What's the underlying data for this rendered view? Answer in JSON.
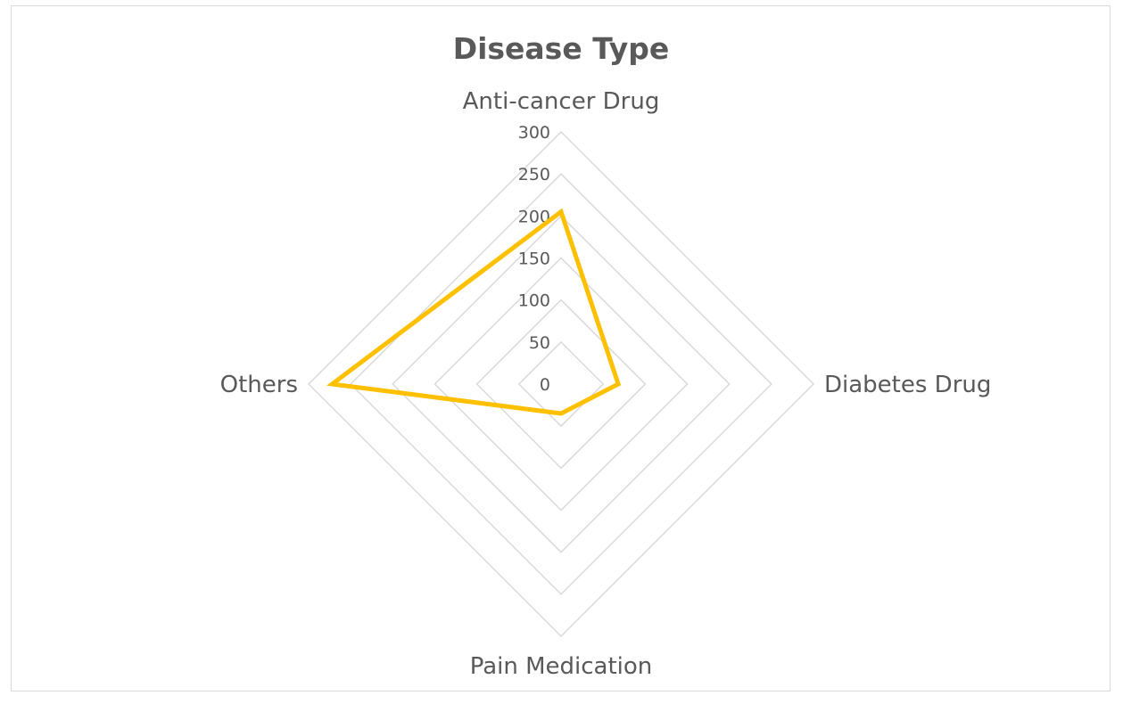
{
  "chart_data": {
    "type": "radar",
    "title": "Disease Type",
    "categories": [
      "Anti-cancer Drug",
      "Diabetes Drug",
      "Pain Medication",
      "Others"
    ],
    "series": [
      {
        "values": [
          205,
          68,
          35,
          272
        ],
        "color": "#FFC000"
      }
    ],
    "rlim": [
      0,
      300
    ],
    "ticks": [
      "0",
      "50",
      "100",
      "150",
      "200",
      "250",
      "300"
    ],
    "grid": true,
    "legend": "none"
  }
}
